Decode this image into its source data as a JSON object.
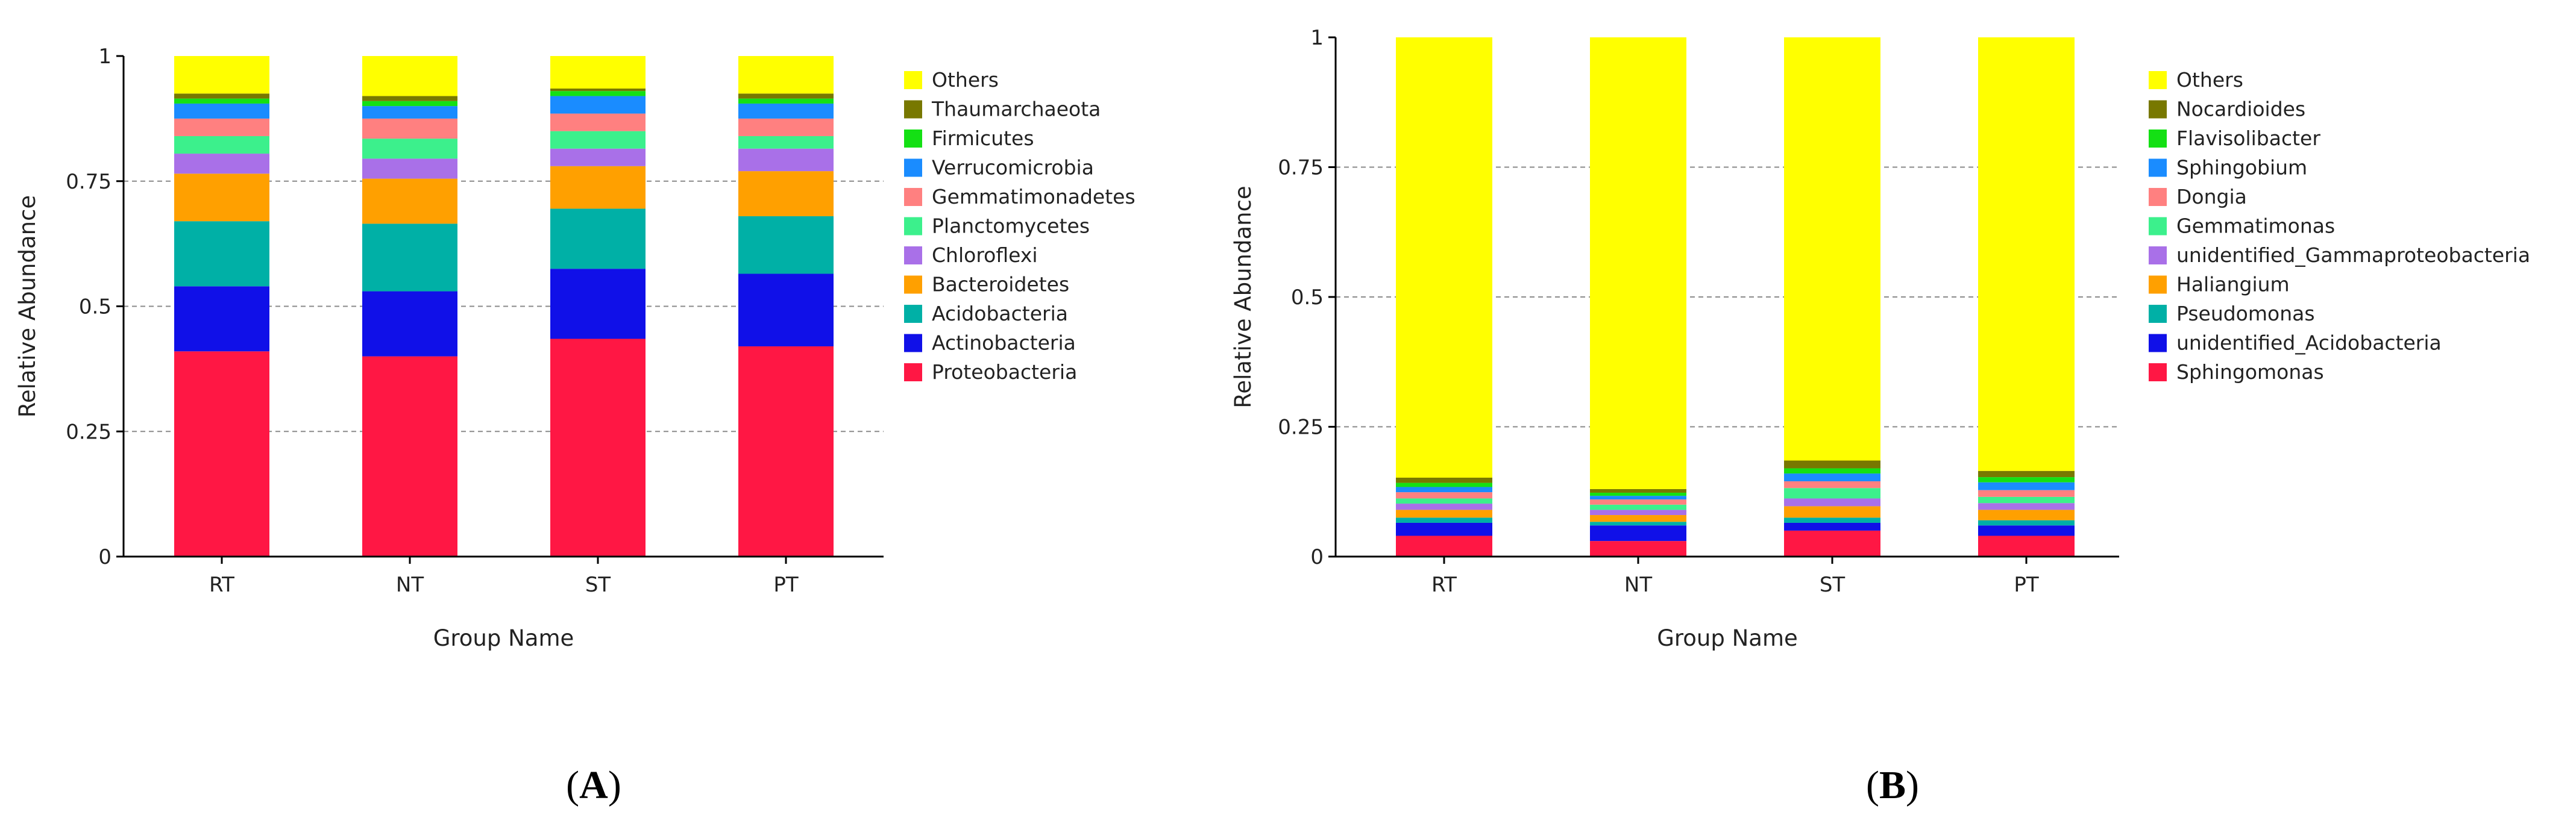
{
  "panels": [
    {
      "label_open": "(",
      "label_letter": "A",
      "label_close": ")"
    },
    {
      "label_open": "(",
      "label_letter": "B",
      "label_close": ")"
    }
  ],
  "chart_data": [
    {
      "type": "bar",
      "stacked": true,
      "title": "",
      "xlabel": "Group Name",
      "ylabel": "Relative Abundance",
      "ylim": [
        0,
        1
      ],
      "yticks": [
        "0",
        "0.25",
        "0.5",
        "0.75",
        "1"
      ],
      "gridlines": "dashed at 0.25, 0.5, 0.75",
      "legend_position": "right",
      "categories": [
        "RT",
        "NT",
        "ST",
        "PT"
      ],
      "series": [
        {
          "name": "Proteobacteria",
          "color": "#ff1744",
          "values": [
            0.41,
            0.4,
            0.435,
            0.42
          ]
        },
        {
          "name": "Actinobacteria",
          "color": "#1010e8",
          "values": [
            0.13,
            0.13,
            0.14,
            0.145
          ]
        },
        {
          "name": "Acidobacteria",
          "color": "#00b0a6",
          "values": [
            0.13,
            0.135,
            0.12,
            0.115
          ]
        },
        {
          "name": "Bacteroidetes",
          "color": "#ffa000",
          "values": [
            0.095,
            0.09,
            0.085,
            0.09
          ]
        },
        {
          "name": "Chloroflexi",
          "color": "#a970e8",
          "values": [
            0.04,
            0.04,
            0.035,
            0.045
          ]
        },
        {
          "name": "Planctomycetes",
          "color": "#3cf08c",
          "values": [
            0.035,
            0.04,
            0.035,
            0.025
          ]
        },
        {
          "name": "Gemmatimonadetes",
          "color": "#ff8080",
          "values": [
            0.035,
            0.04,
            0.035,
            0.035
          ]
        },
        {
          "name": "Verrucomicrobia",
          "color": "#1a8cff",
          "values": [
            0.03,
            0.025,
            0.035,
            0.03
          ]
        },
        {
          "name": "Firmicutes",
          "color": "#14e014",
          "values": [
            0.01,
            0.01,
            0.01,
            0.01
          ]
        },
        {
          "name": "Thaumarchaeota",
          "color": "#787800",
          "values": [
            0.01,
            0.01,
            0.005,
            0.01
          ]
        },
        {
          "name": "Others",
          "color": "#ffff00",
          "values": [
            0.075,
            0.08,
            0.065,
            0.075
          ]
        }
      ]
    },
    {
      "type": "bar",
      "stacked": true,
      "title": "",
      "xlabel": "Group Name",
      "ylabel": "Relative Abundance",
      "ylim": [
        0,
        1
      ],
      "yticks": [
        "0",
        "0.25",
        "0.5",
        "0.75",
        "1"
      ],
      "gridlines": "dashed at 0.25, 0.5, 0.75",
      "legend_position": "right",
      "categories": [
        "RT",
        "NT",
        "ST",
        "PT"
      ],
      "series": [
        {
          "name": "Sphingomonas",
          "color": "#ff1744",
          "values": [
            0.04,
            0.03,
            0.05,
            0.04
          ]
        },
        {
          "name": "unidentified_Acidobacteria",
          "color": "#1010e8",
          "values": [
            0.025,
            0.03,
            0.015,
            0.02
          ]
        },
        {
          "name": "Pseudomonas",
          "color": "#00b0a6",
          "values": [
            0.01,
            0.007,
            0.01,
            0.01
          ]
        },
        {
          "name": "Haliangium",
          "color": "#ffa000",
          "values": [
            0.015,
            0.013,
            0.022,
            0.02
          ]
        },
        {
          "name": "unidentified_Gammaproteobacteria",
          "color": "#a970e8",
          "values": [
            0.012,
            0.01,
            0.015,
            0.013
          ]
        },
        {
          "name": "Gemmatimonas",
          "color": "#3cf08c",
          "values": [
            0.01,
            0.01,
            0.02,
            0.012
          ]
        },
        {
          "name": "Dongia",
          "color": "#ff8080",
          "values": [
            0.012,
            0.01,
            0.013,
            0.013
          ]
        },
        {
          "name": "Sphingobium",
          "color": "#1a8cff",
          "values": [
            0.01,
            0.007,
            0.015,
            0.015
          ]
        },
        {
          "name": "Flavisolibacter",
          "color": "#14e014",
          "values": [
            0.008,
            0.006,
            0.01,
            0.01
          ]
        },
        {
          "name": "Nocardioides",
          "color": "#787800",
          "values": [
            0.01,
            0.007,
            0.015,
            0.012
          ]
        },
        {
          "name": "Others",
          "color": "#ffff00",
          "values": [
            0.848,
            0.87,
            0.815,
            0.835
          ]
        }
      ]
    }
  ]
}
